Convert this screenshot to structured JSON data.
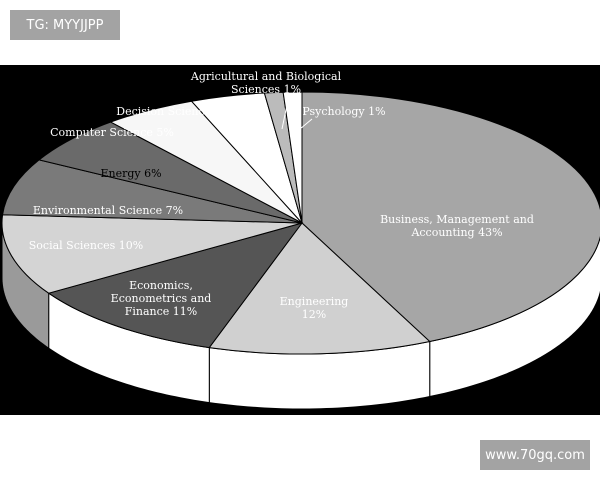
{
  "watermarks": {
    "top_left": "TG: MYYJJPP",
    "bottom_right": "www.70gq.com"
  },
  "chart_data": {
    "type": "pie",
    "style": "3d",
    "legend": "none",
    "slices": [
      {
        "label_lines": [
          "Business, Management and",
          "Accounting 43%"
        ],
        "value": 43,
        "color": "#a6a6a6",
        "side_color": "#ffffff"
      },
      {
        "label_lines": [
          "Engineering",
          "12%"
        ],
        "value": 12,
        "color": "#d0d0d0",
        "side_color": "#ffffff"
      },
      {
        "label_lines": [
          "Economics,",
          "Econometrics and",
          "Finance 11%"
        ],
        "value": 11,
        "color": "#555555",
        "side_color": "#ffffff"
      },
      {
        "label_lines": [
          "Social Sciences 10%"
        ],
        "value": 10,
        "color": "#d4d4d4",
        "side_color": "#9a9a9a"
      },
      {
        "label_lines": [
          "Environmental Science 7%"
        ],
        "value": 7,
        "color": "#7a7a7a",
        "side_color": "#ffffff"
      },
      {
        "label_lines": [
          "Energy 6%"
        ],
        "value": 6,
        "color": "#6a6a6a",
        "side_color": "#ffffff"
      },
      {
        "label_lines": [
          "Computer Science 5%"
        ],
        "value": 5,
        "color": "#f7f7f7",
        "side_color": "#ffffff"
      },
      {
        "label_lines": [
          "Decision Sciences 4%"
        ],
        "value": 4,
        "color": "#ffffff",
        "side_color": "#ffffff"
      },
      {
        "label_lines": [
          "Agricultural and Biological",
          "Sciences 1%"
        ],
        "value": 1,
        "color": "#bbbbbb",
        "side_color": "#ffffff"
      },
      {
        "label_lines": [
          "Psychology 1%"
        ],
        "value": 1,
        "color": "#ffffff",
        "side_color": "#ffffff"
      }
    ]
  }
}
